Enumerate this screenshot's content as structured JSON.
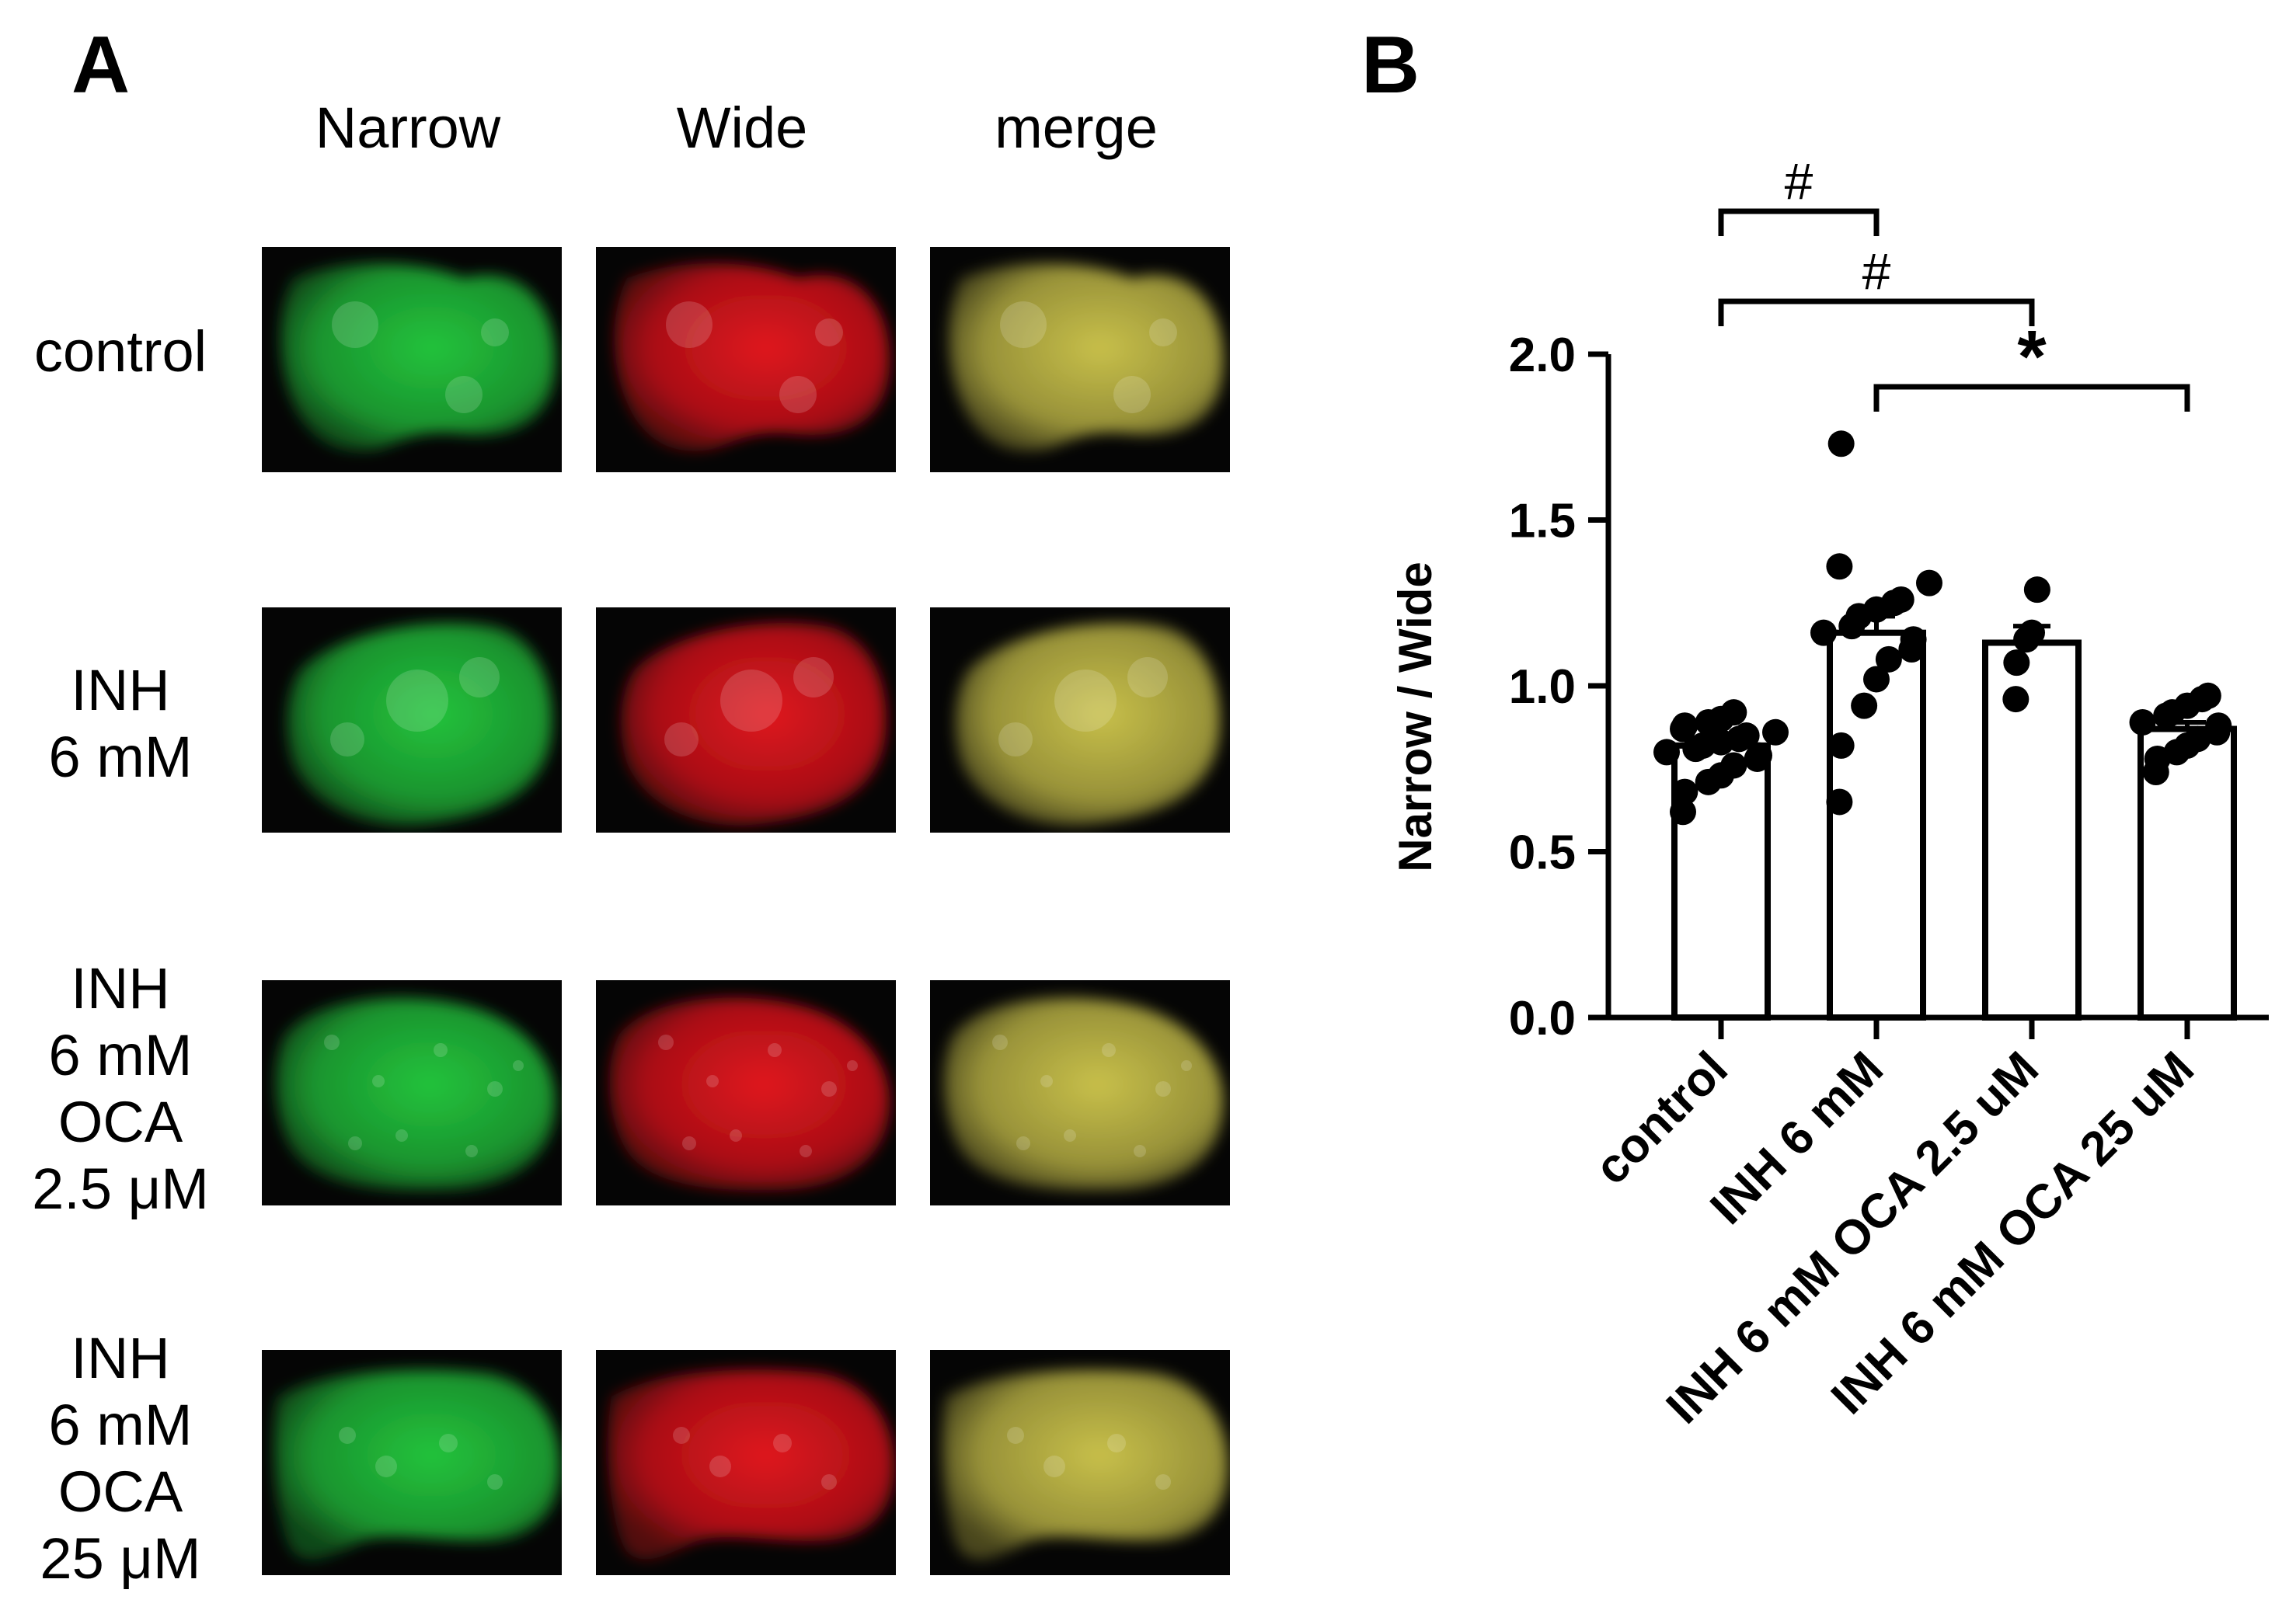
{
  "panel_labels": {
    "a": "A",
    "b": "B"
  },
  "panel_a": {
    "columns": [
      "Narrow",
      "Wide",
      "merge"
    ],
    "rows": [
      {
        "lines": [
          "control"
        ]
      },
      {
        "lines": [
          "INH",
          "6 mM"
        ]
      },
      {
        "lines": [
          "INH",
          "6 mM",
          "OCA",
          "2.5 μM"
        ]
      },
      {
        "lines": [
          "INH",
          "6 mM",
          "OCA",
          "25 μM"
        ]
      }
    ],
    "channel_colors": {
      "Narrow": "#22c33c",
      "Wide": "#e0141c",
      "merge": "#c8c04a"
    }
  },
  "chart_data": {
    "type": "bar",
    "categories": [
      "control",
      "INH 6 mM",
      "INH 6 mM OCA 2.5 uM",
      "INH 6 mM OCA 25 uM"
    ],
    "values": [
      0.82,
      1.16,
      1.13,
      0.87
    ],
    "error_sem": [
      0.02,
      0.05,
      0.05,
      0.02
    ],
    "points": [
      [
        0.62,
        0.68,
        0.71,
        0.73,
        0.76,
        0.78,
        0.79,
        0.8,
        0.81,
        0.82,
        0.83,
        0.84,
        0.85,
        0.86,
        0.87,
        0.88,
        0.89,
        0.9,
        0.92
      ],
      [
        0.65,
        0.82,
        0.94,
        1.02,
        1.08,
        1.11,
        1.14,
        1.16,
        1.18,
        1.21,
        1.23,
        1.25,
        1.26,
        1.31,
        1.36,
        1.73
      ],
      [
        0.96,
        1.07,
        1.14,
        1.16,
        1.29
      ],
      [
        0.74,
        0.78,
        0.8,
        0.82,
        0.84,
        0.86,
        0.88,
        0.89,
        0.91,
        0.92,
        0.94,
        0.96,
        0.97
      ]
    ],
    "xlabel": "",
    "ylabel": "Narrow / Wide",
    "ylim": [
      0.0,
      2.0
    ],
    "yticks": [
      "0.0",
      "0.5",
      "1.0",
      "1.5",
      "2.0"
    ],
    "bar_color": "#ffffff",
    "point_color": "#000000",
    "grid": false,
    "significance": [
      {
        "from": 0,
        "to": 1,
        "label": "#"
      },
      {
        "from": 0,
        "to": 2,
        "label": "#"
      },
      {
        "from": 1,
        "to": 3,
        "label": "*"
      }
    ]
  }
}
